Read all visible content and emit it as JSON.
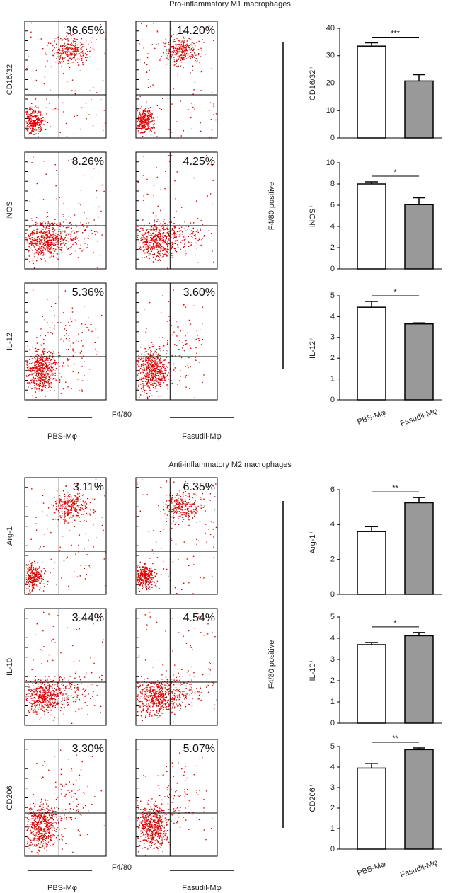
{
  "figure_groups": [
    {
      "title": "Pro-inflammatory M1 macrophages",
      "side_label": "F4/80 positive",
      "x_axis_label": "F4/80",
      "column_labels": [
        "PBS-Mφ",
        "Fasudil-Mφ"
      ],
      "flow_rows": [
        {
          "label": "CD16/32",
          "percentages": [
            "36.65%",
            "14.20%"
          ]
        },
        {
          "label": "iNOS",
          "percentages": [
            "8.26%",
            "4.25%"
          ]
        },
        {
          "label": "IL-12",
          "percentages": [
            "5.36%",
            "3.60%"
          ]
        }
      ]
    },
    {
      "title": "Anti-inflammatory M2 macrophages",
      "side_label": "F4/80 positive",
      "x_axis_label": "F4/80",
      "column_labels": [
        "PBS-Mφ",
        "Fasudil-Mφ"
      ],
      "flow_rows": [
        {
          "label": "Arg-1",
          "percentages": [
            "3.11%",
            "6.35%"
          ]
        },
        {
          "label": "IL-10",
          "percentages": [
            "3.44%",
            "4.54%"
          ]
        },
        {
          "label": "CD206",
          "percentages": [
            "3.30%",
            "5.07%"
          ]
        }
      ]
    }
  ],
  "chart_data": [
    {
      "type": "bar",
      "y_label": "CD16/32⁺",
      "values": [
        33.5,
        20.8
      ],
      "errors": [
        1.2,
        2.3
      ],
      "colors": [
        "#ffffff",
        "#999999"
      ],
      "significance": "***",
      "ylim": [
        0,
        40
      ],
      "yticks": [
        0,
        10,
        20,
        30,
        40
      ]
    },
    {
      "type": "bar",
      "y_label": "iNOS⁺",
      "values": [
        8.0,
        6.05
      ],
      "errors": [
        0.2,
        0.65
      ],
      "colors": [
        "#ffffff",
        "#999999"
      ],
      "significance": "*",
      "ylim": [
        0,
        10
      ],
      "yticks": [
        0,
        2,
        4,
        6,
        8,
        10
      ]
    },
    {
      "type": "bar",
      "y_label": "IL-12⁺",
      "categories": [
        "PBS-Mφ",
        "Fasudil-Mφ"
      ],
      "values": [
        4.45,
        3.65
      ],
      "errors": [
        0.28,
        0.05
      ],
      "colors": [
        "#ffffff",
        "#999999"
      ],
      "significance": "*",
      "ylim": [
        0,
        5
      ],
      "yticks": [
        0,
        1,
        2,
        3,
        4,
        5
      ]
    },
    {
      "type": "bar",
      "y_label": "Arg-1⁺",
      "values": [
        3.6,
        5.25
      ],
      "errors": [
        0.28,
        0.3
      ],
      "colors": [
        "#ffffff",
        "#999999"
      ],
      "significance": "**",
      "ylim": [
        0,
        6
      ],
      "yticks": [
        0,
        2,
        4,
        6
      ]
    },
    {
      "type": "bar",
      "y_label": "IL-10⁺",
      "values": [
        3.7,
        4.12
      ],
      "errors": [
        0.1,
        0.15
      ],
      "colors": [
        "#ffffff",
        "#999999"
      ],
      "significance": "*",
      "ylim": [
        0,
        5
      ],
      "yticks": [
        0,
        1,
        2,
        3,
        4,
        5
      ]
    },
    {
      "type": "bar",
      "y_label": "CD206⁺",
      "categories": [
        "PBS-Mφ",
        "Fasudil-Mφ"
      ],
      "values": [
        3.95,
        4.85
      ],
      "errors": [
        0.22,
        0.08
      ],
      "colors": [
        "#ffffff",
        "#999999"
      ],
      "significance": "**",
      "ylim": [
        0,
        5
      ],
      "yticks": [
        0,
        1,
        2,
        3,
        4,
        5
      ]
    }
  ]
}
